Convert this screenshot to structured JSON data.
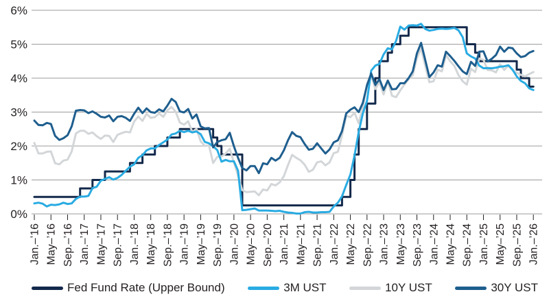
{
  "chart_data": {
    "type": "line",
    "title": "",
    "xlabel": "",
    "ylabel": "",
    "ylim": [
      0,
      6
    ],
    "grid": "horizontal",
    "legend_position": "bottom",
    "grid_color": "#9b9b9b",
    "text_color": "#231f20",
    "y_ticks": [
      "6%",
      "5%",
      "4%",
      "3%",
      "2%",
      "1%",
      "0%"
    ],
    "x_tick_month_interval": 4,
    "x_tick_labels": [
      "Jan.–’16",
      "May–’16",
      "Sep.–’16",
      "Jan.–’17",
      "May–’17",
      "Sep.–’17",
      "Jan.–’18",
      "May–’18",
      "Sep.–’18",
      "Jan.–’19",
      "May–’19",
      "Sep.–’19",
      "Jan.–’20",
      "May–’20",
      "Sep.–’20",
      "Jan.–’21",
      "May–’21",
      "Sep.–’21",
      "Jan.–’22",
      "May–’22",
      "Sep.–’22",
      "Jan.–’23",
      "May–’23",
      "Sep.–’23",
      "Jan.–’24",
      "May–’24",
      "Sep.–’24",
      "Jan.–’25",
      "May–’25",
      "Sep.–’25",
      "Jan.–’26"
    ],
    "x_unit": "monthly, Jan 2016 through Jan 2026",
    "draw_order": [
      0,
      2,
      1,
      3
    ],
    "series": [
      {
        "name": "Fed Fund Rate (Upper Bound)",
        "color": "#13294b",
        "step": true,
        "values": [
          0.5,
          0.5,
          0.5,
          0.5,
          0.5,
          0.5,
          0.5,
          0.5,
          0.5,
          0.5,
          0.5,
          0.75,
          0.75,
          0.75,
          1.0,
          1.0,
          1.0,
          1.25,
          1.25,
          1.25,
          1.25,
          1.25,
          1.25,
          1.5,
          1.5,
          1.5,
          1.75,
          1.75,
          1.75,
          2.0,
          2.0,
          2.0,
          2.25,
          2.25,
          2.25,
          2.5,
          2.5,
          2.5,
          2.5,
          2.5,
          2.5,
          2.5,
          2.5,
          2.25,
          2.0,
          1.75,
          1.75,
          1.75,
          1.75,
          1.75,
          0.25,
          0.25,
          0.25,
          0.25,
          0.25,
          0.25,
          0.25,
          0.25,
          0.25,
          0.25,
          0.25,
          0.25,
          0.25,
          0.25,
          0.25,
          0.25,
          0.25,
          0.25,
          0.25,
          0.25,
          0.25,
          0.25,
          0.25,
          0.25,
          0.5,
          0.5,
          1.0,
          1.75,
          2.5,
          2.5,
          3.25,
          3.25,
          4.0,
          4.5,
          4.5,
          4.75,
          5.0,
          5.0,
          5.25,
          5.25,
          5.5,
          5.5,
          5.5,
          5.5,
          5.5,
          5.5,
          5.5,
          5.5,
          5.5,
          5.5,
          5.5,
          5.5,
          5.5,
          5.5,
          5.0,
          5.0,
          4.75,
          4.5,
          4.5,
          4.5,
          4.5,
          4.5,
          4.5,
          4.5,
          4.5,
          4.5,
          4.25,
          4.0,
          4.0,
          3.75,
          3.75
        ]
      },
      {
        "name": "3M UST",
        "color": "#29abe2",
        "step": false,
        "values": [
          0.31,
          0.33,
          0.3,
          0.22,
          0.27,
          0.26,
          0.28,
          0.33,
          0.29,
          0.31,
          0.44,
          0.51,
          0.51,
          0.53,
          0.76,
          0.8,
          0.98,
          1.03,
          1.08,
          1.01,
          1.06,
          1.15,
          1.27,
          1.39,
          1.46,
          1.65,
          1.73,
          1.87,
          1.93,
          1.93,
          2.03,
          2.11,
          2.19,
          2.34,
          2.37,
          2.45,
          2.41,
          2.45,
          2.4,
          2.43,
          2.35,
          2.12,
          2.08,
          1.99,
          1.88,
          1.54,
          1.59,
          1.55,
          1.55,
          1.27,
          0.11,
          0.12,
          0.14,
          0.16,
          0.1,
          0.1,
          0.1,
          0.09,
          0.08,
          0.09,
          0.06,
          0.04,
          0.03,
          0.01,
          0.01,
          0.05,
          0.06,
          0.04,
          0.04,
          0.05,
          0.05,
          0.06,
          0.22,
          0.33,
          0.52,
          0.85,
          1.16,
          1.72,
          2.41,
          2.96,
          3.33,
          4.22,
          4.37,
          4.42,
          4.7,
          4.88,
          4.85,
          5.1,
          5.52,
          5.43,
          5.55,
          5.56,
          5.55,
          5.6,
          5.45,
          5.4,
          5.42,
          5.45,
          5.46,
          5.45,
          5.46,
          5.48,
          5.41,
          5.21,
          4.73,
          4.64,
          4.58,
          4.37,
          4.29,
          4.3,
          4.29,
          4.31,
          4.34,
          4.35,
          4.38,
          4.25,
          4.05,
          3.92,
          3.85,
          3.7,
          3.65
        ]
      },
      {
        "name": "10Y UST",
        "color": "#d3d6d8",
        "step": false,
        "values": [
          2.09,
          1.78,
          1.78,
          1.83,
          1.84,
          1.49,
          1.46,
          1.57,
          1.6,
          1.84,
          2.37,
          2.45,
          2.45,
          2.36,
          2.4,
          2.29,
          2.21,
          2.31,
          2.3,
          2.12,
          2.33,
          2.38,
          2.42,
          2.4,
          2.72,
          2.87,
          2.74,
          2.95,
          2.83,
          2.85,
          2.96,
          2.86,
          3.05,
          3.15,
          3.01,
          2.69,
          2.63,
          2.73,
          2.41,
          2.51,
          2.14,
          2.0,
          2.02,
          1.5,
          1.68,
          1.69,
          1.78,
          1.92,
          1.51,
          1.13,
          0.7,
          0.64,
          0.65,
          0.66,
          0.55,
          0.72,
          0.69,
          0.88,
          0.84,
          0.93,
          1.11,
          1.44,
          1.74,
          1.65,
          1.58,
          1.45,
          1.24,
          1.3,
          1.52,
          1.55,
          1.43,
          1.52,
          1.79,
          1.83,
          2.32,
          2.89,
          2.85,
          2.98,
          2.67,
          3.15,
          3.83,
          4.1,
          3.68,
          3.88,
          3.52,
          3.92,
          3.48,
          3.44,
          3.64,
          3.81,
          3.97,
          4.09,
          4.59,
          4.88,
          4.37,
          3.88,
          3.91,
          4.25,
          4.2,
          4.68,
          4.5,
          4.36,
          4.09,
          3.91,
          3.81,
          4.28,
          4.18,
          4.58,
          4.54,
          4.24,
          4.23,
          4.17,
          4.41,
          4.24,
          4.37,
          4.23,
          4.16,
          4.1,
          4.05,
          4.12,
          4.18
        ]
      },
      {
        "name": "30Y UST",
        "color": "#1e5e8e",
        "step": false,
        "values": [
          2.75,
          2.62,
          2.61,
          2.68,
          2.65,
          2.3,
          2.18,
          2.23,
          2.32,
          2.58,
          3.04,
          3.06,
          3.05,
          2.97,
          3.02,
          2.95,
          2.86,
          2.84,
          2.9,
          2.73,
          2.86,
          2.88,
          2.83,
          2.74,
          2.95,
          3.13,
          2.97,
          3.11,
          3.0,
          2.98,
          3.08,
          3.02,
          3.19,
          3.39,
          3.3,
          3.02,
          2.99,
          3.09,
          2.81,
          2.93,
          2.58,
          2.52,
          2.53,
          1.96,
          2.12,
          2.17,
          2.2,
          2.39,
          1.99,
          1.65,
          1.35,
          1.28,
          1.41,
          1.41,
          1.2,
          1.49,
          1.46,
          1.65,
          1.57,
          1.65,
          1.87,
          2.17,
          2.41,
          2.3,
          2.26,
          2.06,
          1.89,
          1.92,
          2.08,
          1.93,
          1.78,
          1.9,
          2.11,
          2.17,
          2.44,
          2.96,
          3.07,
          3.14,
          3.0,
          3.27,
          3.79,
          4.14,
          3.8,
          3.97,
          3.65,
          3.93,
          3.67,
          3.68,
          3.85,
          3.85,
          4.0,
          4.2,
          4.73,
          5.04,
          4.54,
          4.03,
          4.17,
          4.38,
          4.34,
          4.78,
          4.65,
          4.51,
          4.35,
          4.2,
          4.12,
          4.48,
          4.36,
          4.78,
          4.79,
          4.49,
          4.57,
          4.68,
          4.93,
          4.78,
          4.9,
          4.88,
          4.73,
          4.62,
          4.65,
          4.75,
          4.8
        ]
      }
    ]
  }
}
